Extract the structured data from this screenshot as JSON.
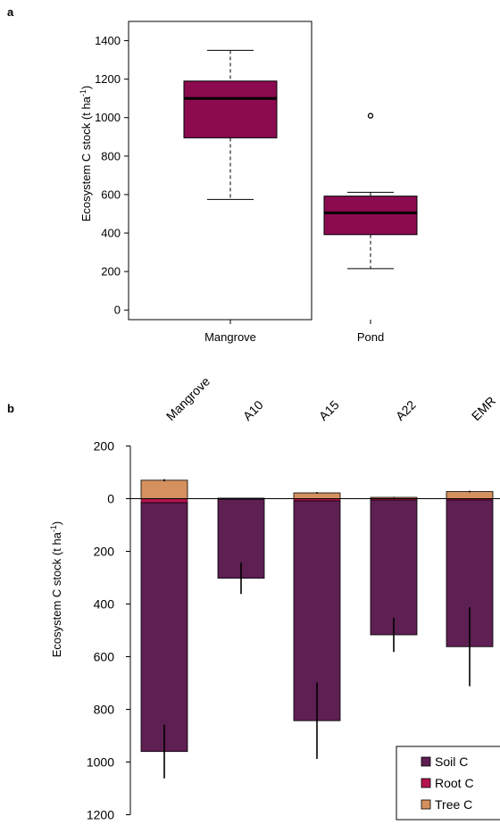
{
  "chart_data": [
    {
      "panel": "a",
      "type": "box",
      "ylabel": "Ecosystem C stock (t ha",
      "ylabel_sup": "-1",
      "ylabel_end": ")",
      "ylim": [
        -50,
        1500
      ],
      "yticks": [
        0,
        200,
        400,
        600,
        800,
        1000,
        1200,
        1400
      ],
      "categories": [
        "Mangrove",
        "Pond"
      ],
      "box_color": "#8B0A50",
      "boxes": [
        {
          "category": "Mangrove",
          "min": 575,
          "q1": 895,
          "median": 1100,
          "q3": 1190,
          "max": 1350,
          "outliers": []
        },
        {
          "category": "Pond",
          "min": 215,
          "q1": 392,
          "median": 505,
          "q3": 592,
          "max": 612,
          "outliers": [
            1010
          ]
        }
      ],
      "grid": false
    },
    {
      "panel": "b",
      "type": "stacked-bar",
      "ylabel": "Ecosystem C stock (t ha",
      "ylabel_sup": "-1",
      "ylabel_end": ")",
      "ylim": [
        -1200,
        200
      ],
      "yticks": [
        -1200,
        -1000,
        -800,
        -600,
        -400,
        -200,
        0,
        200
      ],
      "ytick_labels": [
        "1200",
        "1000",
        "800",
        "600",
        "400",
        "200",
        "0",
        "200"
      ],
      "categories": [
        "Mangrove",
        "A10",
        "A15",
        "A22",
        "EMR"
      ],
      "series": [
        {
          "name": "Soil C",
          "color": "#5E1F52",
          "values": [
            -945,
            -300,
            -835,
            -512,
            -557
          ],
          "errors": [
            102,
            60,
            145,
            65,
            150
          ]
        },
        {
          "name": "Root C",
          "color": "#B5134F",
          "values": [
            -15,
            -2,
            -8,
            -5,
            -5
          ]
        },
        {
          "name": "Tree C",
          "color": "#D4905E",
          "values": [
            70,
            2,
            22,
            5,
            27
          ],
          "errors": [
            4,
            1,
            3,
            2,
            3
          ]
        }
      ],
      "legend": {
        "position": "bottom-right",
        "entries": [
          "Soil C",
          "Root C",
          "Tree C"
        ]
      },
      "grid": false
    }
  ]
}
